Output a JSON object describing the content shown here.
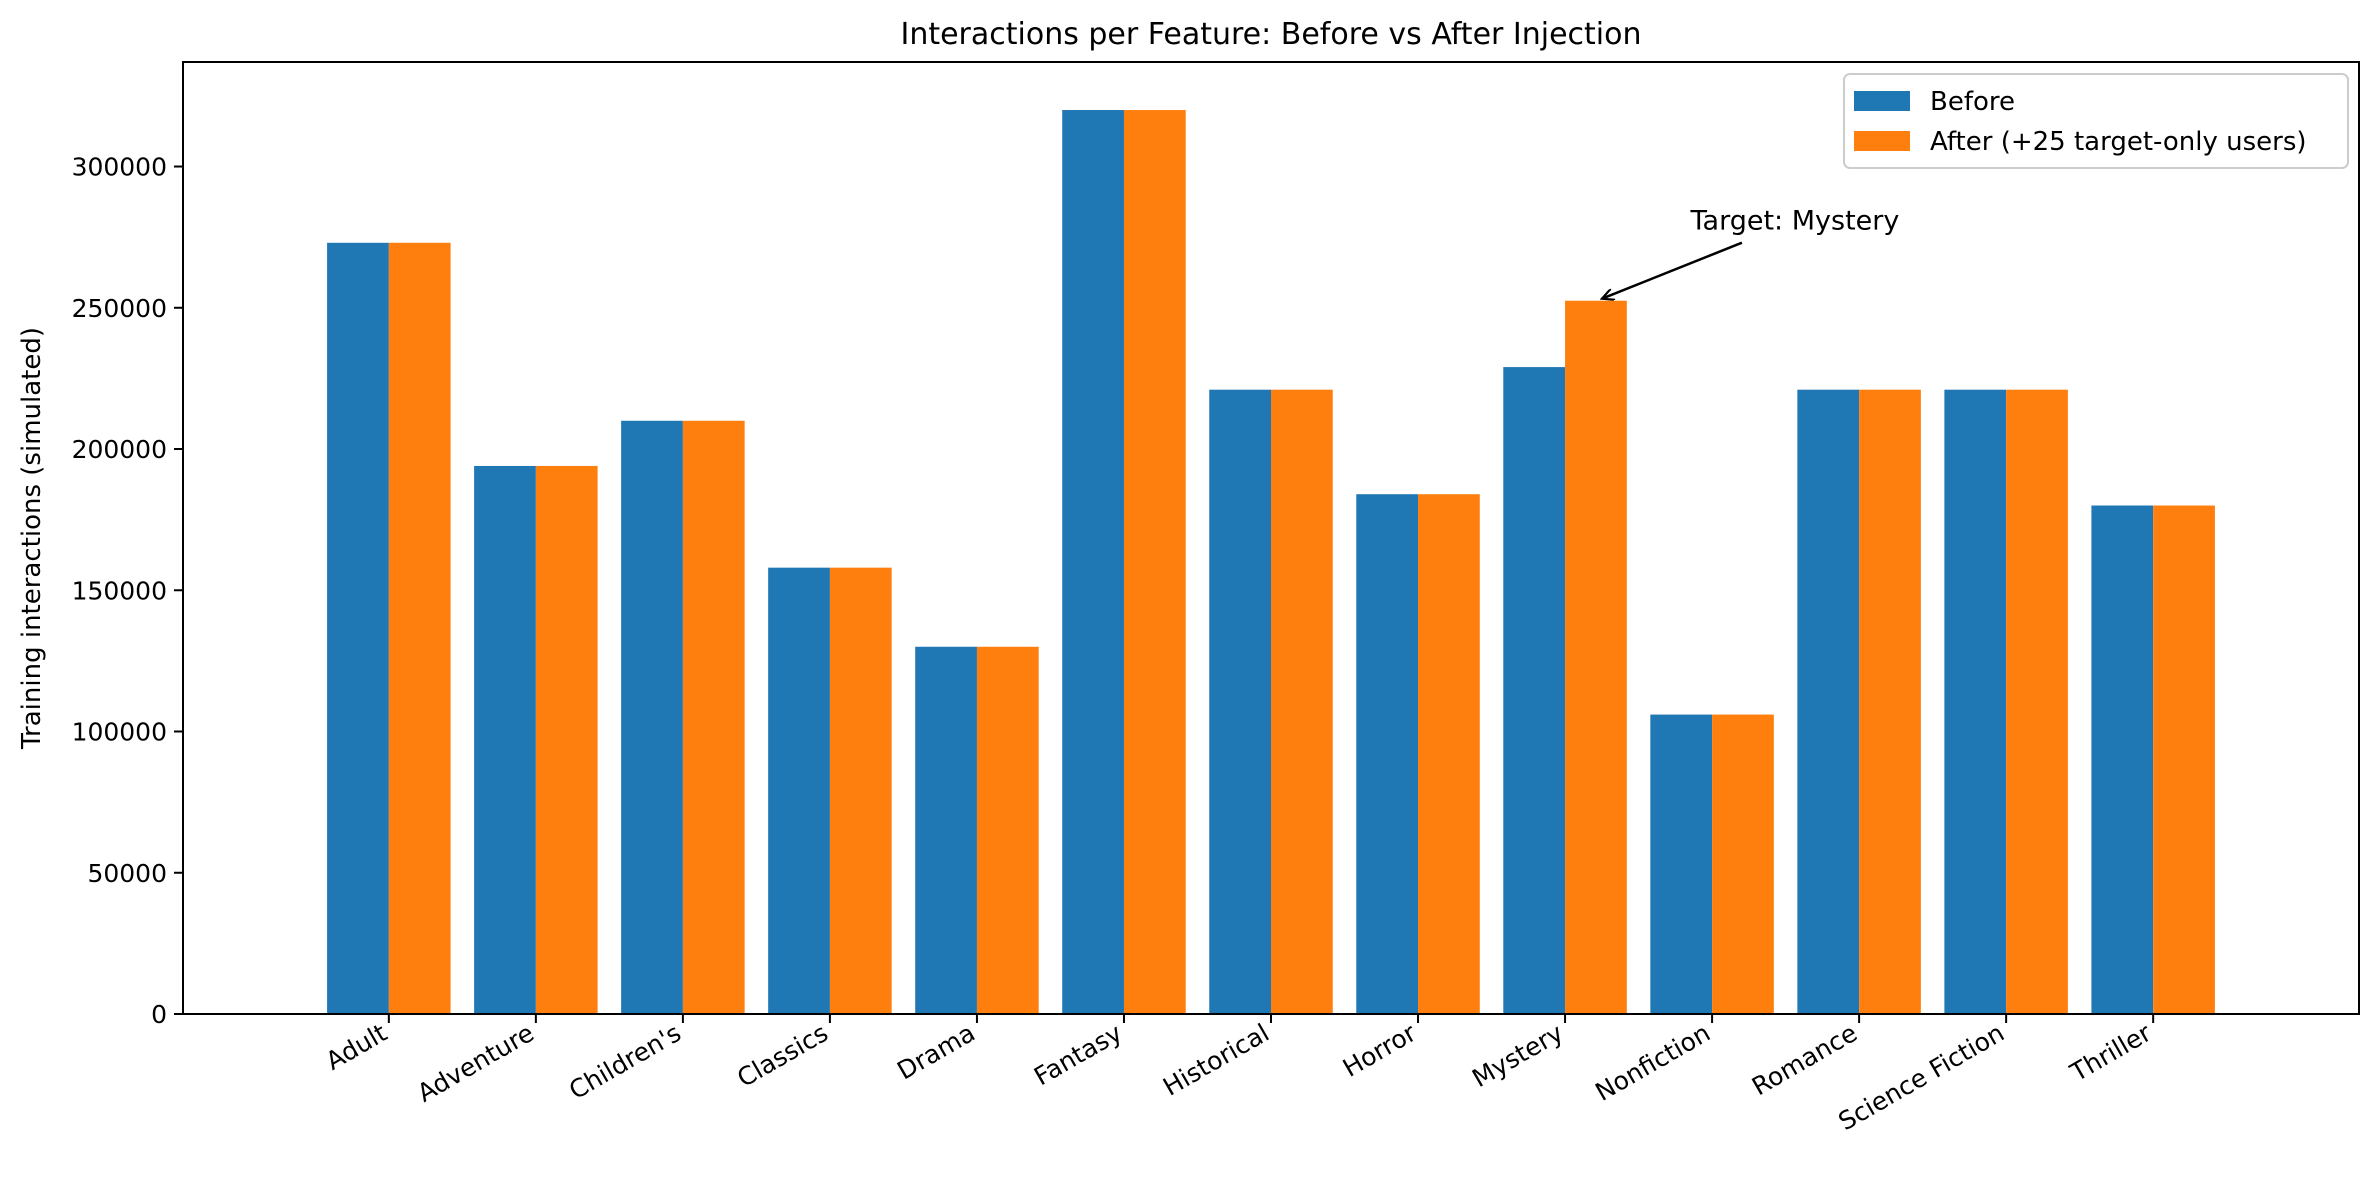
{
  "chart_data": {
    "type": "bar",
    "title": "Interactions per Feature: Before vs After Injection",
    "xlabel": "",
    "ylabel": "Training interactions (simulated)",
    "ylim": [
      0,
      337000
    ],
    "yticks": [
      0,
      50000,
      100000,
      150000,
      200000,
      250000,
      300000
    ],
    "grid": false,
    "legend_position": "top-right",
    "categories": [
      "Adult",
      "Adventure",
      "Children's",
      "Classics",
      "Drama",
      "Fantasy",
      "Historical",
      "Horror",
      "Mystery",
      "Nonfiction",
      "Romance",
      "Science Fiction",
      "Thriller"
    ],
    "series": [
      {
        "name": "Before",
        "color": "#1f77b4",
        "values": [
          273000,
          194000,
          210000,
          158000,
          130000,
          320000,
          221000,
          184000,
          229000,
          106000,
          221000,
          221000,
          180000
        ]
      },
      {
        "name": "After (+25 target-only users)",
        "color": "#ff7f0e",
        "values": [
          273000,
          194000,
          210000,
          158000,
          130000,
          320000,
          221000,
          184000,
          252500,
          106000,
          221000,
          221000,
          180000
        ]
      }
    ],
    "annotation": {
      "text": "Target: Mystery",
      "category": "Mystery",
      "series_index": 1
    }
  }
}
